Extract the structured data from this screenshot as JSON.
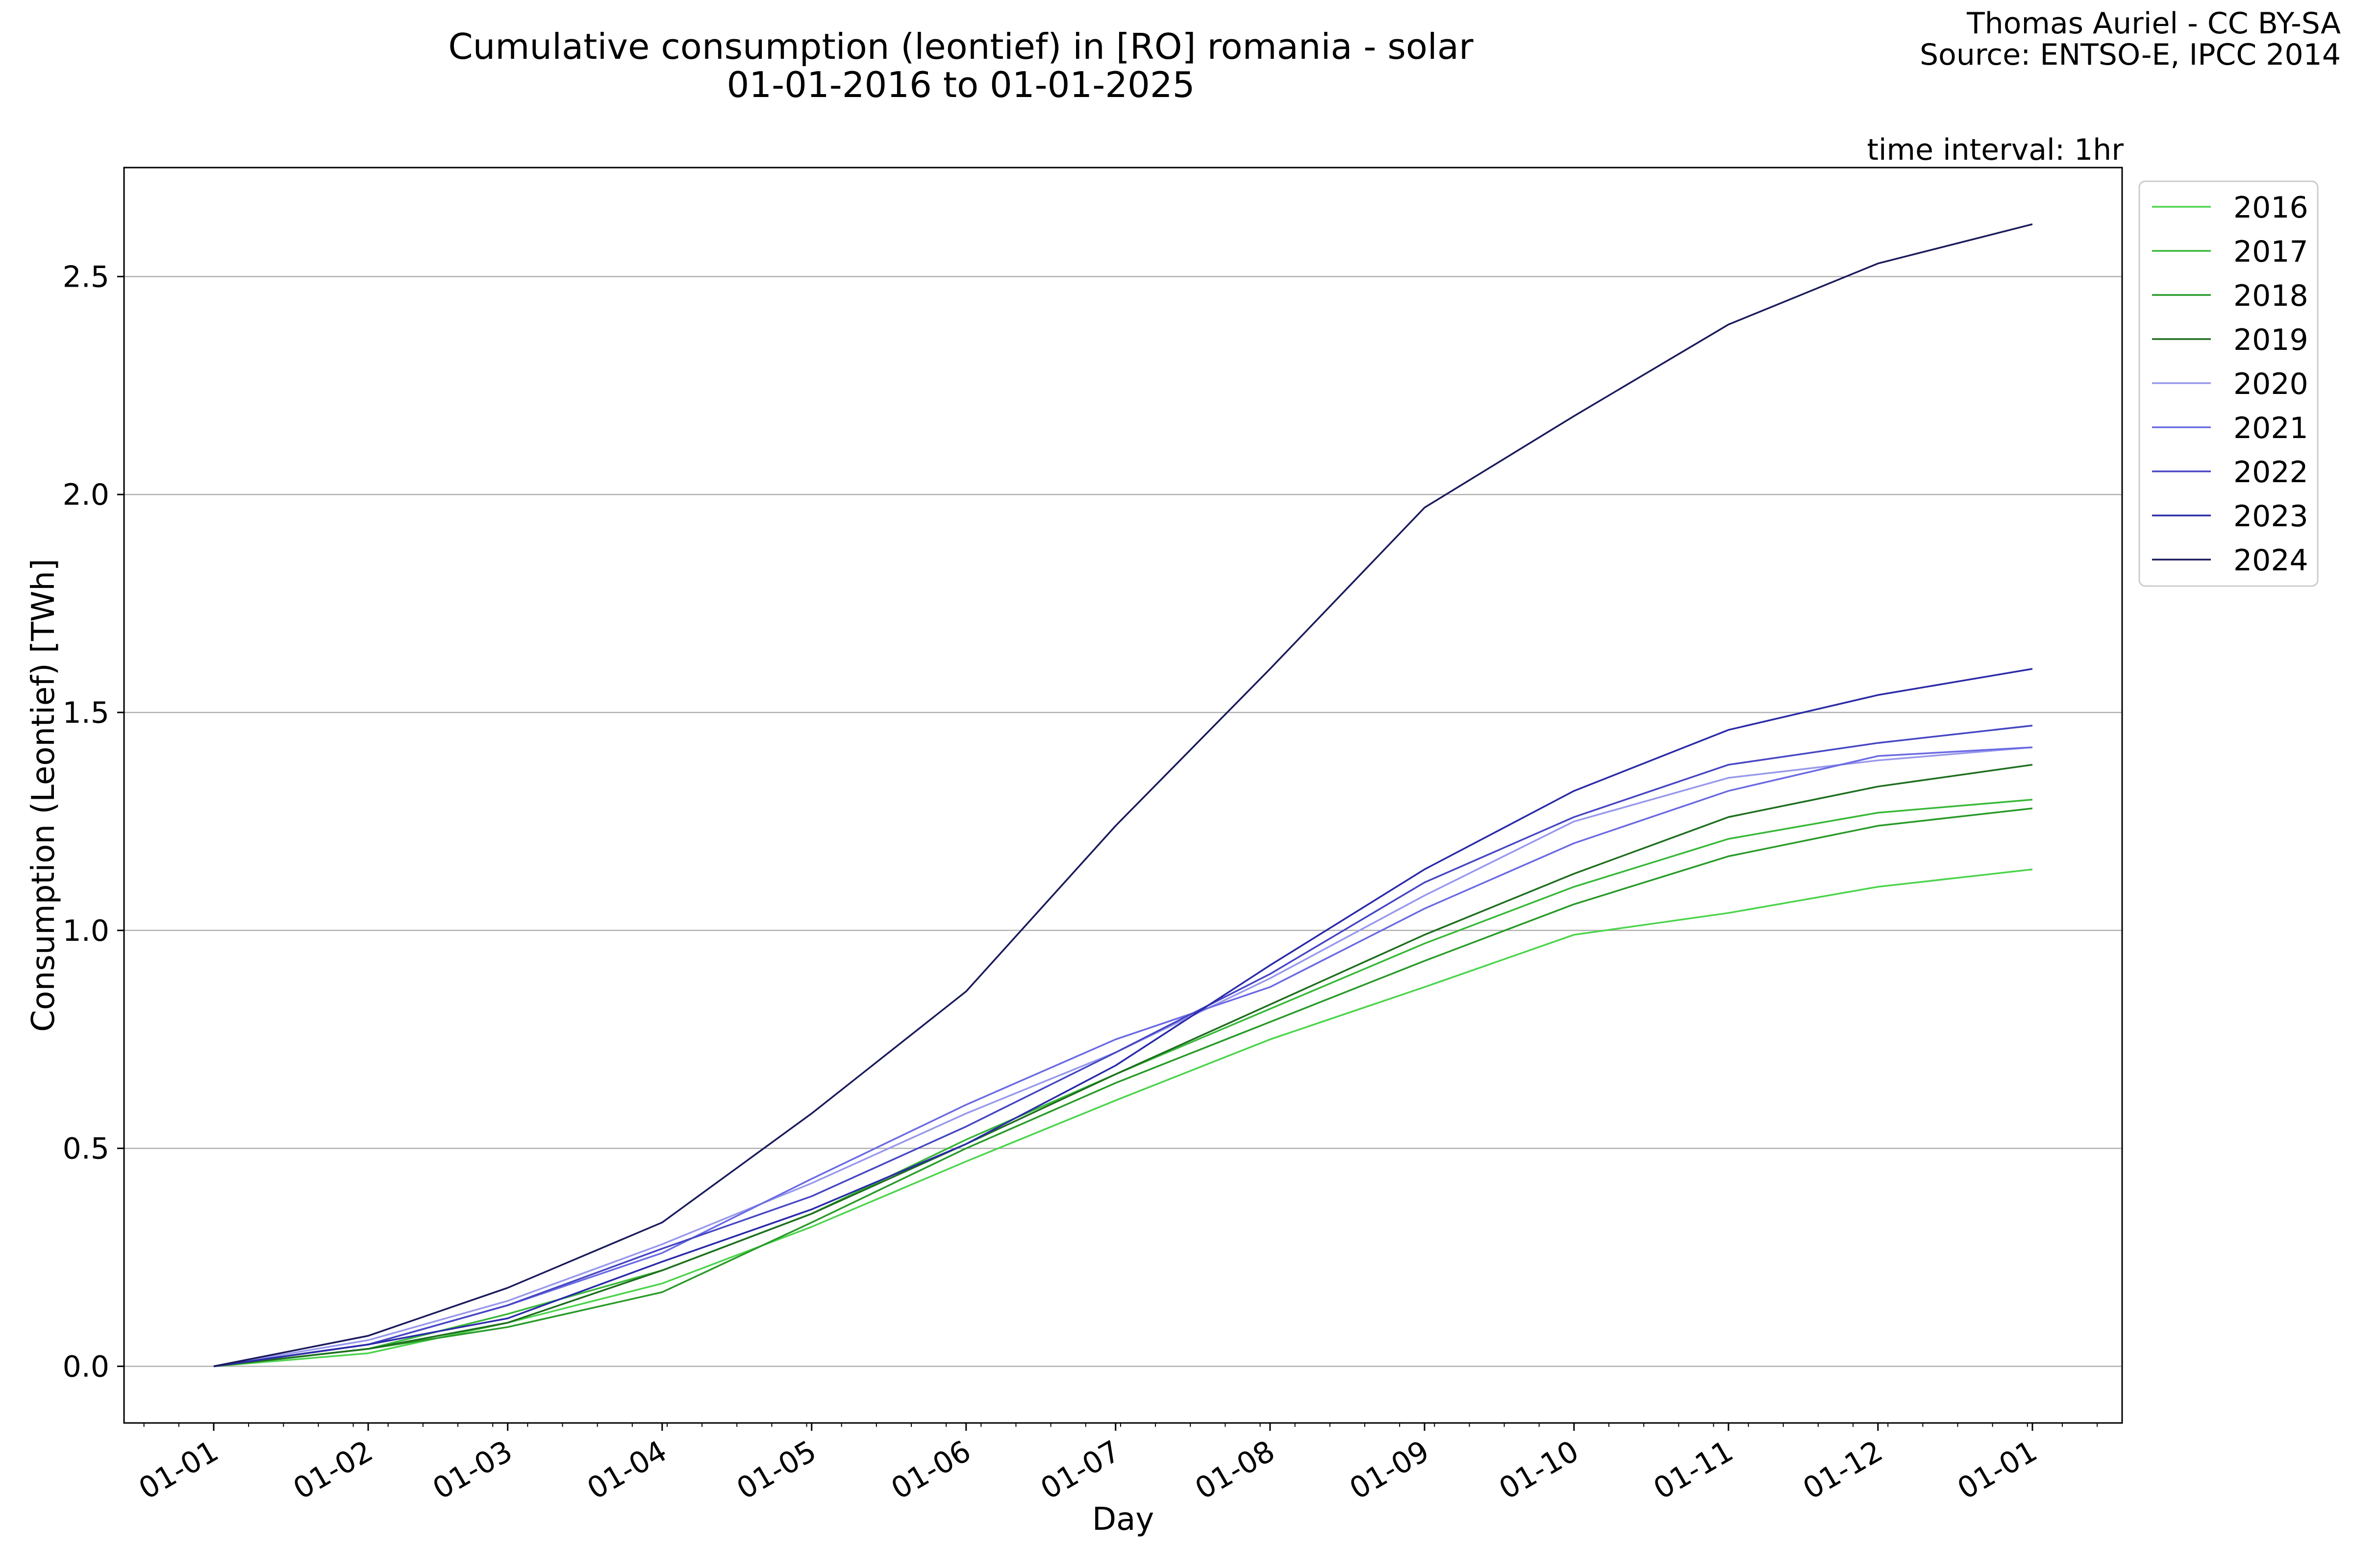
{
  "title_line1": "Cumulative consumption (leontief) in [RO] romania - solar",
  "title_line2": "01-01-2016 to 01-01-2025",
  "credit_line1": "Thomas Auriel - CC BY-SA",
  "credit_line2": "Source: ENTSO-E, IPCC 2014",
  "annotation": "time interval: 1hr",
  "chart_data": {
    "type": "line",
    "title": "Cumulative consumption (leontief) in [RO] romania - solar\n01-01-2016 to 01-01-2025",
    "xlabel": "Day",
    "ylabel": "Consumption (Leontief) [TWh]",
    "x_ticks": [
      "01-01",
      "01-02",
      "01-03",
      "01-04",
      "01-05",
      "01-06",
      "01-07",
      "01-08",
      "01-09",
      "01-10",
      "01-11",
      "01-12",
      "01-01"
    ],
    "x_tick_days": [
      0,
      31,
      59,
      90,
      120,
      151,
      181,
      212,
      243,
      273,
      304,
      334,
      365
    ],
    "xlim": [
      -18,
      383
    ],
    "y_ticks": [
      0.0,
      0.5,
      1.0,
      1.5,
      2.0,
      2.5
    ],
    "y_tick_labels": [
      "0.0",
      "0.5",
      "1.0",
      "1.5",
      "2.0",
      "2.5"
    ],
    "ylim": [
      -0.13,
      2.75
    ],
    "grid": "horizontal",
    "legend_position": "outside-top-right",
    "x": [
      0,
      31,
      59,
      90,
      120,
      151,
      181,
      212,
      243,
      273,
      304,
      334,
      365
    ],
    "series": [
      {
        "name": "2016",
        "color": "#4cd44c",
        "values": [
          0.0,
          0.03,
          0.1,
          0.19,
          0.32,
          0.47,
          0.61,
          0.75,
          0.87,
          0.99,
          1.04,
          1.1,
          1.14
        ]
      },
      {
        "name": "2017",
        "color": "#38b838",
        "values": [
          0.0,
          0.04,
          0.12,
          0.22,
          0.35,
          0.52,
          0.67,
          0.82,
          0.97,
          1.1,
          1.21,
          1.27,
          1.3
        ]
      },
      {
        "name": "2018",
        "color": "#289a28",
        "values": [
          0.0,
          0.04,
          0.09,
          0.17,
          0.33,
          0.5,
          0.65,
          0.79,
          0.93,
          1.06,
          1.17,
          1.24,
          1.28
        ]
      },
      {
        "name": "2019",
        "color": "#1e6e1e",
        "values": [
          0.0,
          0.04,
          0.1,
          0.22,
          0.35,
          0.51,
          0.67,
          0.83,
          0.99,
          1.13,
          1.26,
          1.33,
          1.38
        ]
      },
      {
        "name": "2020",
        "color": "#9898ec",
        "values": [
          0.0,
          0.06,
          0.15,
          0.28,
          0.42,
          0.58,
          0.72,
          0.89,
          1.08,
          1.25,
          1.35,
          1.39,
          1.42
        ]
      },
      {
        "name": "2021",
        "color": "#6a6ae4",
        "values": [
          0.0,
          0.05,
          0.14,
          0.26,
          0.43,
          0.6,
          0.75,
          0.87,
          1.05,
          1.2,
          1.32,
          1.4,
          1.42
        ]
      },
      {
        "name": "2022",
        "color": "#4646c4",
        "values": [
          0.0,
          0.05,
          0.14,
          0.27,
          0.39,
          0.55,
          0.72,
          0.9,
          1.11,
          1.26,
          1.38,
          1.43,
          1.47
        ]
      },
      {
        "name": "2023",
        "color": "#2a2aa8",
        "values": [
          0.0,
          0.05,
          0.11,
          0.24,
          0.36,
          0.51,
          0.69,
          0.92,
          1.14,
          1.32,
          1.46,
          1.54,
          1.6
        ]
      },
      {
        "name": "2024",
        "color": "#1a1a5c",
        "values": [
          0.0,
          0.07,
          0.18,
          0.33,
          0.58,
          0.86,
          1.24,
          1.6,
          1.97,
          2.18,
          2.39,
          2.53,
          2.62
        ]
      }
    ]
  }
}
